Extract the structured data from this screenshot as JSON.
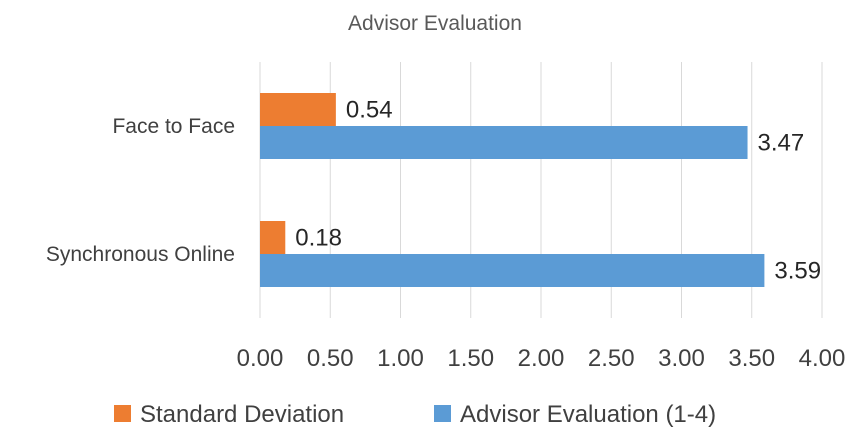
{
  "chart_data": {
    "type": "bar",
    "orientation": "horizontal",
    "title": "Advisor Evaluation",
    "categories": [
      "Face to Face",
      "Synchronous Online"
    ],
    "series": [
      {
        "name": "Standard Deviation",
        "values": [
          0.54,
          0.18
        ],
        "labels": [
          "0.54",
          "0.18"
        ],
        "color": "#ED7D31"
      },
      {
        "name": "Advisor Evaluation (1-4)",
        "values": [
          3.47,
          3.59
        ],
        "labels": [
          "3.47",
          "3.59"
        ],
        "color": "#5B9BD5"
      }
    ],
    "xlim": [
      0,
      4
    ],
    "xticks": [
      "0.00",
      "0.50",
      "1.00",
      "1.50",
      "2.00",
      "2.50",
      "3.00",
      "3.50",
      "4.00"
    ],
    "grid": "vertical",
    "legend": "bottom"
  }
}
